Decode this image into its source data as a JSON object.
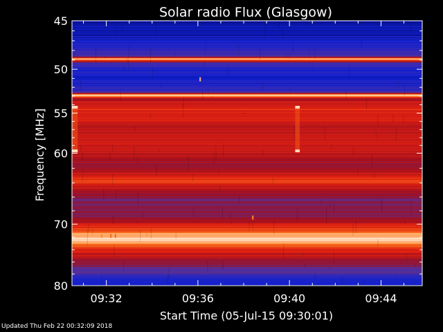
{
  "chart_data": {
    "type": "heatmap",
    "title": "Solar radio Flux (Glasgow)",
    "xlabel": "Start Time (05-Jul-15 09:30:01)",
    "ylabel_prefix": "Frequency ",
    "ylabel_unit": "[MHz]",
    "y_scale": "log",
    "ylim": [
      45,
      80
    ],
    "y_ticks": [
      45,
      50,
      55,
      60,
      70,
      80
    ],
    "y_minor_ticks": [
      46,
      47,
      48,
      49,
      51,
      52,
      53,
      54,
      56,
      57,
      58,
      59,
      62,
      64,
      66,
      68,
      72,
      74,
      76,
      78
    ],
    "y_tick_labels": [
      "45",
      "50",
      "55",
      "60",
      "70",
      "80"
    ],
    "xlim_minutes": [
      0,
      15.3
    ],
    "x_tick_minutes": [
      1.5,
      5.5,
      9.5,
      13.5
    ],
    "x_tick_labels": [
      "09:32",
      "09:36",
      "09:40",
      "09:44"
    ],
    "colormap": [
      "#000050",
      "#1020d0",
      "#5030a0",
      "#a01020",
      "#e02010",
      "#ff8020",
      "#ffffff"
    ],
    "intensity_profile": [
      {
        "freq": 45.0,
        "level": 0.12
      },
      {
        "freq": 46.5,
        "level": 0.14
      },
      {
        "freq": 48.6,
        "level": 0.3
      },
      {
        "freq": 48.9,
        "level": 1.0
      },
      {
        "freq": 49.3,
        "level": 0.3
      },
      {
        "freq": 50.5,
        "level": 0.15
      },
      {
        "freq": 52.5,
        "level": 0.25
      },
      {
        "freq": 52.9,
        "level": 0.95
      },
      {
        "freq": 53.3,
        "level": 0.55
      },
      {
        "freq": 54.5,
        "level": 0.7
      },
      {
        "freq": 57.0,
        "level": 0.58
      },
      {
        "freq": 59.5,
        "level": 0.6
      },
      {
        "freq": 62.0,
        "level": 0.48
      },
      {
        "freq": 63.6,
        "level": 0.75
      },
      {
        "freq": 66.0,
        "level": 0.42
      },
      {
        "freq": 69.0,
        "level": 0.45
      },
      {
        "freq": 72.3,
        "level": 0.98
      },
      {
        "freq": 74.5,
        "level": 0.6
      },
      {
        "freq": 77.0,
        "level": 0.4
      },
      {
        "freq": 79.0,
        "level": 0.22
      },
      {
        "freq": 80.0,
        "level": 0.12
      }
    ],
    "features": [
      {
        "kind": "burst",
        "t_start": 0,
        "t_end": 0.25,
        "freq_low": 54.3,
        "freq_high": 59.7,
        "level": 0.75
      },
      {
        "kind": "burst",
        "t_start": 9.75,
        "t_end": 9.95,
        "freq_low": 54.3,
        "freq_high": 59.7,
        "level": 0.75
      },
      {
        "kind": "spot",
        "t": 5.6,
        "freq": 51.1,
        "level": 0.9
      },
      {
        "kind": "spot",
        "t": 7.9,
        "freq": 69.0,
        "level": 0.85
      },
      {
        "kind": "spot",
        "t": 1.3,
        "freq": 71.8,
        "level": 0.85
      },
      {
        "kind": "spot",
        "t": 1.7,
        "freq": 71.8,
        "level": 0.8
      },
      {
        "kind": "spot",
        "t": 1.9,
        "freq": 71.8,
        "level": 0.8
      }
    ]
  },
  "footer": {
    "updated": "Updated Thu Feb 22 00:32:09 2018"
  }
}
